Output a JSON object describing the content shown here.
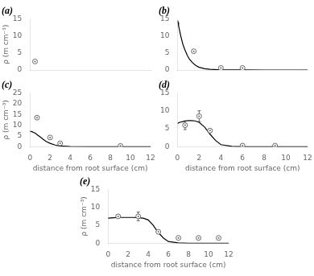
{
  "chart_data": [
    {
      "type": "scatter",
      "title": "(a)",
      "y_label": "ρ (m cm⁻³)",
      "tick_labels": "y",
      "grid": false,
      "xlim": [
        0,
        12
      ],
      "xticks": [
        0,
        2,
        4,
        6,
        8,
        10,
        12
      ],
      "ylim": [
        0,
        15
      ],
      "yticks": [
        0,
        5,
        10,
        15
      ],
      "series": [
        {
          "type": "scatter",
          "marker": "circle",
          "color": "#666666",
          "x": [
            0.5
          ],
          "values": [
            2.5
          ],
          "errors": [
            null
          ]
        }
      ]
    },
    {
      "type": "scatter",
      "title": "(b)",
      "tick_labels": "y",
      "grid": false,
      "xlim": [
        0,
        12
      ],
      "xticks": [
        0,
        2,
        4,
        6,
        8,
        10,
        12
      ],
      "ylim": [
        0,
        15
      ],
      "yticks": [
        0,
        5,
        10,
        15
      ],
      "series": [
        {
          "type": "line",
          "line_style": "solid",
          "color": "#000000",
          "x": [
            0.02,
            0.05,
            0.1,
            0.2,
            0.3,
            0.5,
            0.7,
            0.9,
            1.1,
            1.4,
            1.7,
            2.0,
            2.5,
            3.0,
            4.0,
            6.0,
            8.0,
            10.0,
            12.0
          ],
          "values": [
            14.5,
            14.0,
            13.0,
            11.5,
            10.0,
            7.5,
            5.8,
            4.3,
            3.2,
            2.1,
            1.3,
            0.8,
            0.4,
            0.2,
            0.05,
            0.01,
            0.0,
            0.0,
            0.0
          ]
        },
        {
          "type": "scatter",
          "marker": "circle",
          "color": "#666666",
          "x": [
            1.5,
            4.0,
            6.0
          ],
          "values": [
            5.5,
            0.6,
            0.6
          ],
          "errors": [
            null,
            null,
            null
          ]
        }
      ]
    },
    {
      "type": "scatter",
      "title": "(c)",
      "x_label": "distance from root surface (cm)",
      "y_label": "ρ (m cm⁻³)",
      "grid": false,
      "xlim": [
        0,
        12
      ],
      "xticks": [
        0,
        2,
        4,
        6,
        8,
        10,
        12
      ],
      "ylim": [
        0,
        25
      ],
      "yticks": [
        0,
        5,
        10,
        15,
        20,
        25
      ],
      "series": [
        {
          "type": "line",
          "line_style": "solid",
          "color": "#000000",
          "x": [
            0.01,
            0.05,
            0.1,
            0.2,
            0.4,
            0.6,
            0.8,
            1.0,
            1.3,
            1.6,
            2.0,
            2.5,
            3.0,
            4.0,
            6.0,
            8.0,
            10.0,
            12.0
          ],
          "values": [
            7.2,
            7.2,
            7.1,
            7.0,
            6.6,
            6.0,
            5.3,
            4.6,
            3.5,
            2.5,
            1.6,
            0.8,
            0.4,
            0.1,
            0.01,
            0.0,
            0.0,
            0.0
          ]
        },
        {
          "type": "scatter",
          "marker": "circle",
          "color": "#666666",
          "x": [
            0.7,
            2.0,
            3.0,
            9.0
          ],
          "values": [
            13.5,
            4.3,
            1.6,
            0.4
          ],
          "errors": [
            null,
            null,
            null,
            null
          ]
        }
      ]
    },
    {
      "type": "scatter",
      "title": "(d)",
      "x_label": "distance from root surface (cm)",
      "grid": false,
      "xlim": [
        0,
        12
      ],
      "xticks": [
        0,
        2,
        4,
        6,
        8,
        10,
        12
      ],
      "ylim": [
        0,
        15
      ],
      "yticks": [
        0,
        5,
        10,
        15
      ],
      "series": [
        {
          "type": "line",
          "line_style": "solid",
          "color": "#000000",
          "x": [
            0.01,
            0.2,
            0.5,
            0.8,
            1.0,
            1.3,
            1.6,
            2.0,
            2.5,
            3.0,
            3.5,
            4.0,
            5.0,
            6.0,
            8.0,
            10.0,
            12.0
          ],
          "values": [
            6.5,
            6.8,
            7.0,
            7.2,
            7.3,
            7.3,
            7.2,
            6.8,
            5.5,
            3.5,
            1.8,
            0.6,
            0.1,
            0.02,
            0.0,
            0.0,
            0.0
          ]
        },
        {
          "type": "scatter",
          "marker": "circle",
          "color": "#666666",
          "x": [
            0.7,
            2.0,
            3.0,
            6.0,
            9.0
          ],
          "values": [
            6.0,
            8.5,
            4.5,
            0.3,
            0.3
          ],
          "errors": [
            1.2,
            1.5,
            null,
            null,
            null
          ]
        }
      ]
    },
    {
      "type": "scatter",
      "title": "(e)",
      "x_label": "distance from root surface (cm)",
      "y_label": "ρ (m cm⁻³)",
      "grid": false,
      "xlim": [
        0,
        12
      ],
      "xticks": [
        0,
        2,
        4,
        6,
        8,
        10,
        12
      ],
      "ylim": [
        0,
        15
      ],
      "yticks": [
        0,
        5,
        10,
        15
      ],
      "series": [
        {
          "type": "line",
          "line_style": "solid",
          "color": "#000000",
          "x": [
            0.0,
            0.5,
            1.0,
            1.5,
            2.0,
            2.5,
            3.0,
            3.5,
            4.0,
            4.5,
            5.0,
            5.5,
            6.0,
            7.0,
            8.0,
            10.0,
            12.0
          ],
          "values": [
            7.0,
            7.1,
            7.2,
            7.2,
            7.2,
            7.2,
            7.1,
            7.0,
            6.5,
            5.0,
            3.0,
            1.5,
            0.5,
            0.1,
            0.02,
            0.0,
            0.0
          ]
        },
        {
          "type": "scatter",
          "marker": "circle",
          "color": "#666666",
          "x": [
            1.0,
            3.0,
            5.0,
            7.0,
            9.0,
            11.0
          ],
          "values": [
            7.5,
            7.5,
            3.2,
            1.5,
            1.5,
            1.5
          ],
          "errors": [
            0.5,
            1.2,
            0.4,
            0.3,
            null,
            null
          ]
        }
      ]
    }
  ]
}
